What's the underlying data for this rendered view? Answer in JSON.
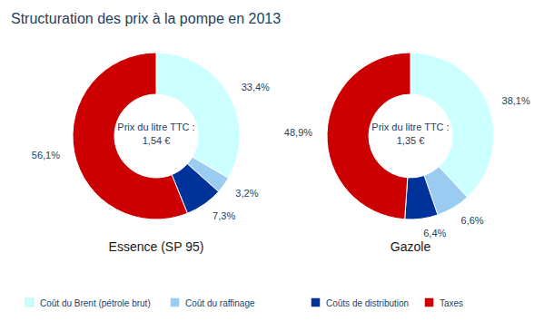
{
  "title": "Structuration des prix à la pompe en 2013",
  "chart_data": [
    {
      "type": "donut",
      "subtitle": "Essence (SP 95)",
      "annotations": [
        "Prix du litre TTC :",
        "1,54 €"
      ],
      "categories": [
        "Coût du Brent (pétrole brut)",
        "Coût du raffinage",
        "Coûts de distribution",
        "Taxes"
      ],
      "values": [
        33.4,
        3.2,
        7.3,
        56.1
      ],
      "value_labels": [
        "33,4%",
        "3,2%",
        "7,3%",
        "56,1%"
      ],
      "colors": [
        "#ccffff",
        "#99ccf0",
        "#003399",
        "#cc0000"
      ],
      "data_labels": true,
      "legend": "bottom"
    },
    {
      "type": "donut",
      "subtitle": "Gazole",
      "annotations": [
        "Prix du litre TTC :",
        "1,35 €"
      ],
      "categories": [
        "Coût du Brent (pétrole brut)",
        "Coût du raffinage",
        "Coûts de distribution",
        "Taxes"
      ],
      "values": [
        38.1,
        6.6,
        6.4,
        48.9
      ],
      "value_labels": [
        "38,1%",
        "6,6%",
        "6,4%",
        "48,9%"
      ],
      "colors": [
        "#ccffff",
        "#99ccf0",
        "#003399",
        "#cc0000"
      ],
      "data_labels": true
    }
  ]
}
